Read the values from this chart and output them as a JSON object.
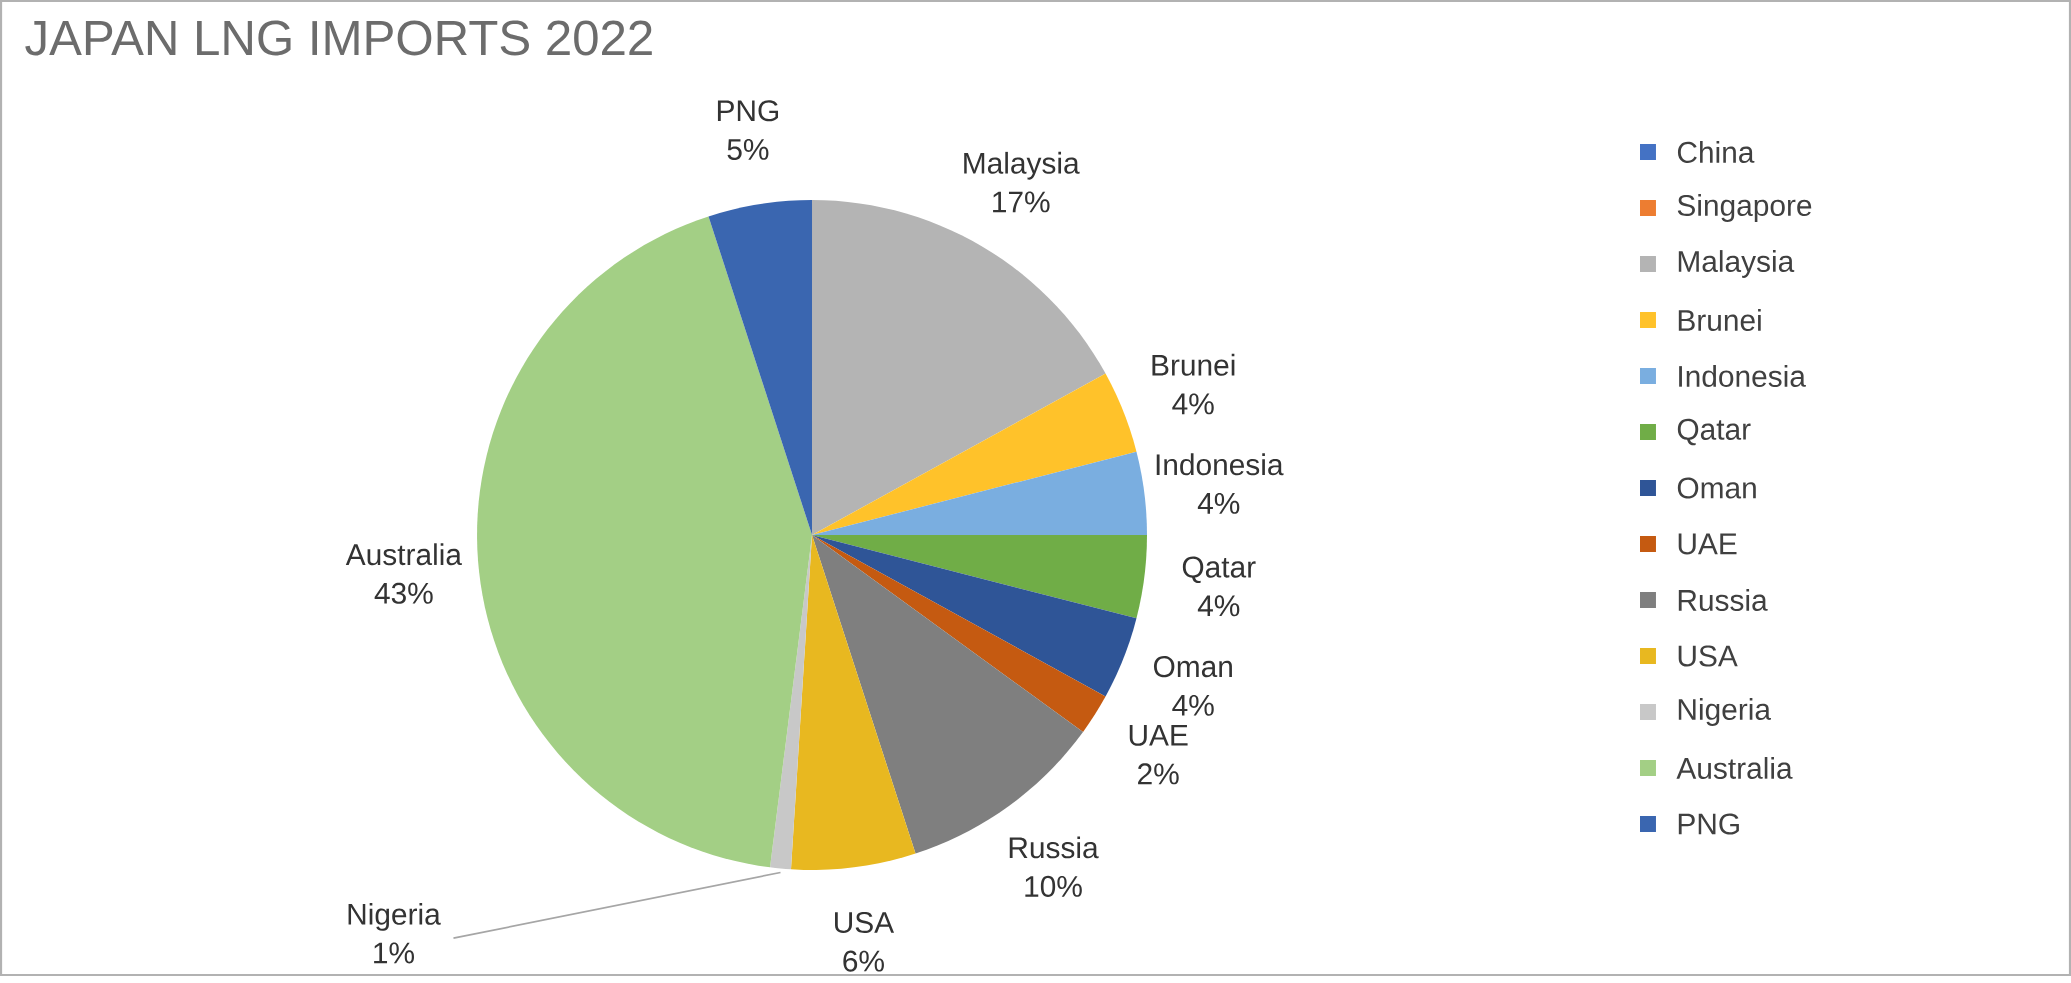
{
  "chart_data": {
    "type": "pie",
    "title": "JAPAN LNG IMPORTS 2022",
    "categories": [
      "China",
      "Singapore",
      "Malaysia",
      "Brunei",
      "Indonesia",
      "Qatar",
      "Oman",
      "UAE",
      "Russia",
      "USA",
      "Nigeria",
      "Australia",
      "PNG"
    ],
    "values": [
      0,
      0,
      17,
      4,
      4,
      4,
      4,
      2,
      10,
      6,
      1,
      43,
      5
    ],
    "value_labels": [
      null,
      null,
      "17%",
      "4%",
      "4%",
      "4%",
      "4%",
      "2%",
      "10%",
      "6%",
      "1%",
      "43%",
      "5%"
    ],
    "colors": [
      "#4472c4",
      "#ed7d31",
      "#b4b4b4",
      "#ffc22a",
      "#7aaee0",
      "#70ad47",
      "#2f5597",
      "#c55a11",
      "#7f7f7f",
      "#e8b820",
      "#c8c8c8",
      "#a3cf85",
      "#3a66b0"
    ],
    "legend": "right"
  }
}
